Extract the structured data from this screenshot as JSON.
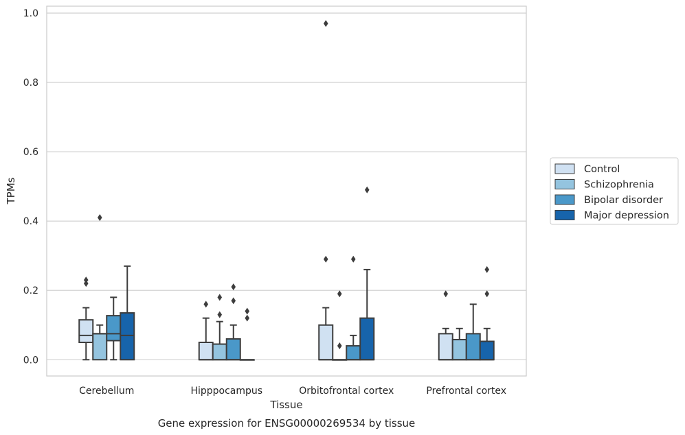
{
  "chart_data": {
    "type": "box",
    "title": "Gene expression for ENSG00000269534 by tissue",
    "xlabel": "Tissue",
    "ylabel": "TPMs",
    "ylim": [
      -0.047,
      1.02
    ],
    "yticks": [
      0.0,
      0.2,
      0.4,
      0.6,
      0.8,
      1.0
    ],
    "ytick_labels": [
      "0.0",
      "0.2",
      "0.4",
      "0.6",
      "0.8",
      "1.0"
    ],
    "grid": "horizontal",
    "legend_position": "right-center",
    "categories": [
      "Cerebellum",
      "Hipppocampus",
      "Orbitofrontal cortex",
      "Prefrontal cortex"
    ],
    "series": [
      {
        "name": "Control",
        "color": "#d0e1f2",
        "boxes": [
          {
            "whislo": 0.0,
            "q1": 0.05,
            "med": 0.07,
            "q3": 0.115,
            "whishi": 0.15,
            "fliers": [
              0.22,
              0.23
            ]
          },
          {
            "whislo": 0.0,
            "q1": 0.0,
            "med": 0.0,
            "q3": 0.05,
            "whishi": 0.12,
            "fliers": [
              0.16
            ]
          },
          {
            "whislo": 0.0,
            "q1": 0.0,
            "med": 0.0,
            "q3": 0.1,
            "whishi": 0.15,
            "fliers": [
              0.29,
              0.97
            ]
          },
          {
            "whislo": 0.0,
            "q1": 0.0,
            "med": 0.0,
            "q3": 0.075,
            "whishi": 0.09,
            "fliers": [
              0.19
            ]
          }
        ]
      },
      {
        "name": "Schizophrenia",
        "color": "#94c4df",
        "boxes": [
          {
            "whislo": 0.0,
            "q1": 0.0,
            "med": 0.075,
            "q3": 0.075,
            "whishi": 0.1,
            "fliers": [
              0.41
            ]
          },
          {
            "whislo": 0.0,
            "q1": 0.0,
            "med": 0.0,
            "q3": 0.045,
            "whishi": 0.11,
            "fliers": [
              0.13,
              0.18
            ]
          },
          {
            "whislo": 0.0,
            "q1": 0.0,
            "med": 0.0,
            "q3": 0.0,
            "whishi": 0.0,
            "fliers": [
              0.04,
              0.19
            ]
          },
          {
            "whislo": 0.0,
            "q1": 0.0,
            "med": 0.0,
            "q3": 0.058,
            "whishi": 0.09,
            "fliers": []
          }
        ]
      },
      {
        "name": "Bipolar disorder",
        "color": "#4a98c9",
        "boxes": [
          {
            "whislo": 0.0,
            "q1": 0.055,
            "med": 0.075,
            "q3": 0.127,
            "whishi": 0.18,
            "fliers": []
          },
          {
            "whislo": 0.0,
            "q1": 0.0,
            "med": 0.0,
            "q3": 0.06,
            "whishi": 0.1,
            "fliers": [
              0.17,
              0.21
            ]
          },
          {
            "whislo": 0.0,
            "q1": 0.0,
            "med": 0.0,
            "q3": 0.04,
            "whishi": 0.07,
            "fliers": [
              0.29
            ]
          },
          {
            "whislo": 0.0,
            "q1": 0.0,
            "med": 0.0,
            "q3": 0.075,
            "whishi": 0.16,
            "fliers": []
          }
        ]
      },
      {
        "name": "Major depression",
        "color": "#1764ab",
        "boxes": [
          {
            "whislo": 0.0,
            "q1": 0.0,
            "med": 0.07,
            "q3": 0.135,
            "whishi": 0.27,
            "fliers": []
          },
          {
            "whislo": 0.0,
            "q1": 0.0,
            "med": 0.0,
            "q3": 0.0,
            "whishi": 0.0,
            "fliers": [
              0.12,
              0.14
            ]
          },
          {
            "whislo": 0.0,
            "q1": 0.0,
            "med": 0.0,
            "q3": 0.12,
            "whishi": 0.26,
            "fliers": [
              0.49
            ]
          },
          {
            "whislo": 0.0,
            "q1": 0.0,
            "med": 0.0,
            "q3": 0.053,
            "whishi": 0.09,
            "fliers": [
              0.19,
              0.26
            ]
          }
        ]
      }
    ]
  }
}
